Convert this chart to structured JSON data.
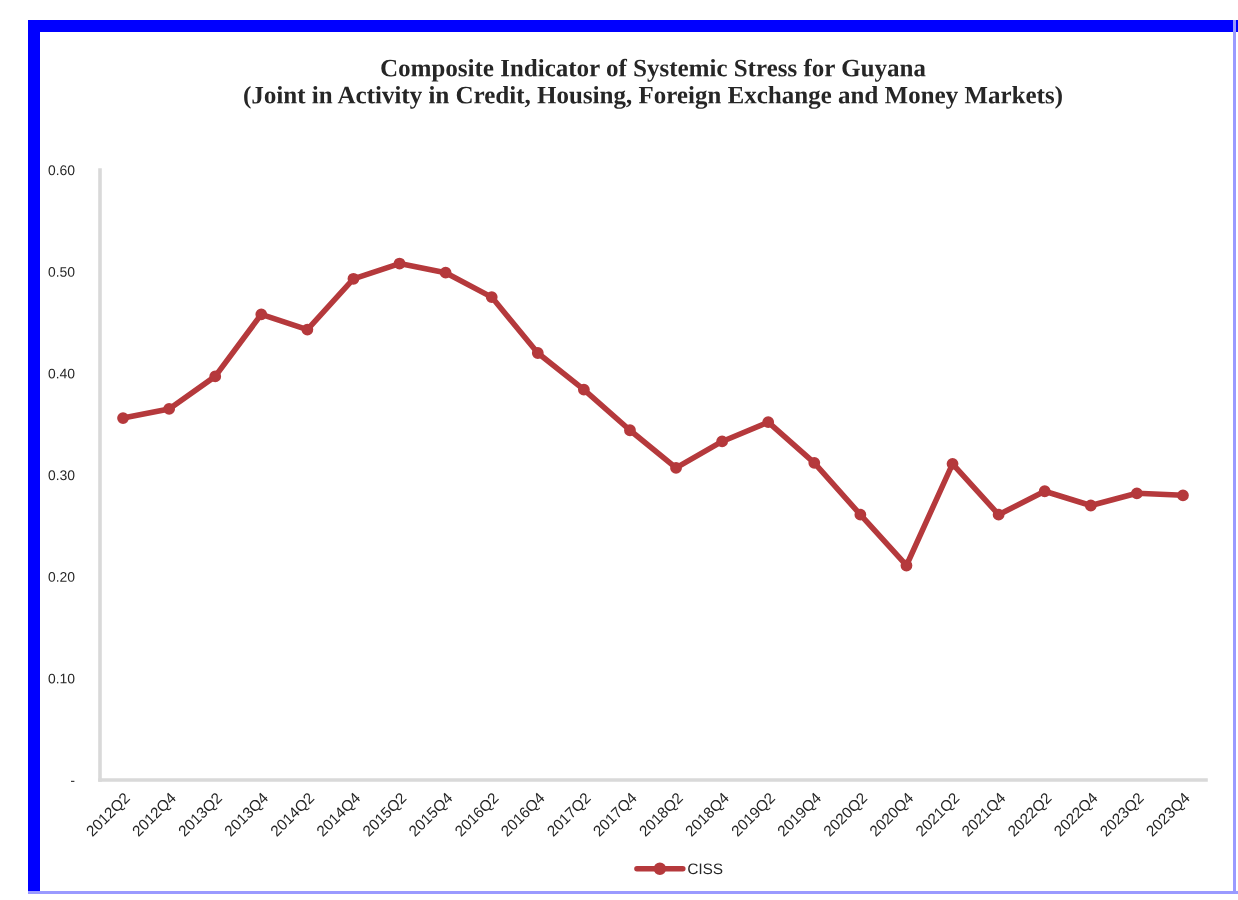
{
  "chart_data": {
    "type": "line",
    "title": "Composite Indicator of Systemic Stress for Guyana\n(Joint in Activity in Credit, Housing, Foreign Exchange and Money Markets)",
    "categories": [
      "2012Q2",
      "2012Q4",
      "2013Q2",
      "2013Q4",
      "2014Q2",
      "2014Q4",
      "2015Q2",
      "2015Q4",
      "2016Q2",
      "2016Q4",
      "2017Q2",
      "2017Q4",
      "2018Q2",
      "2018Q4",
      "2019Q2",
      "2019Q4",
      "2020Q2",
      "2020Q4",
      "2021Q2",
      "2021Q4",
      "2022Q2",
      "2022Q4",
      "2023Q2",
      "2023Q4"
    ],
    "series": [
      {
        "name": "CISS",
        "color": "#b5393c",
        "values": [
          0.356,
          0.365,
          0.397,
          0.458,
          0.443,
          0.493,
          0.508,
          0.499,
          0.475,
          0.42,
          0.384,
          0.344,
          0.307,
          0.333,
          0.352,
          0.312,
          0.261,
          0.211,
          0.311,
          0.261,
          0.284,
          0.27,
          0.282,
          0.28
        ]
      }
    ],
    "ylim": [
      0,
      0.6
    ],
    "yticks": [
      {
        "value": 0,
        "label": "-"
      },
      {
        "value": 0.1,
        "label": "0.10"
      },
      {
        "value": 0.2,
        "label": "0.20"
      },
      {
        "value": 0.3,
        "label": "0.30"
      },
      {
        "value": 0.4,
        "label": "0.40"
      },
      {
        "value": 0.5,
        "label": "0.50"
      },
      {
        "value": 0.6,
        "label": "0.60"
      }
    ],
    "legend": "bottom",
    "marker": "circle",
    "line_style": "solid"
  }
}
